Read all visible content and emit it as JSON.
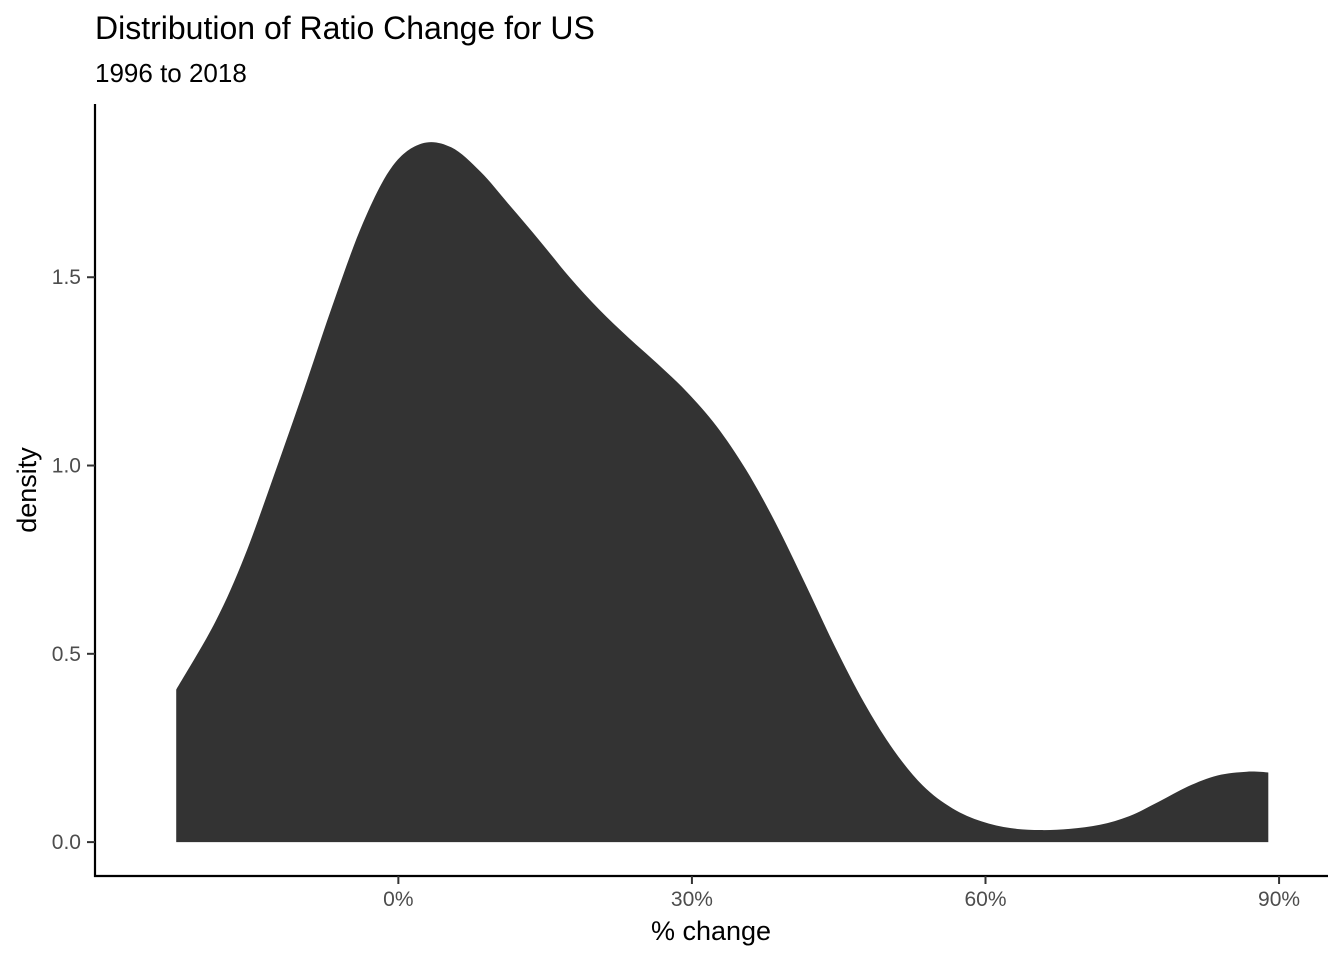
{
  "chart_data": {
    "type": "area",
    "title": "Distribution of Ratio Change for US",
    "subtitle": "1996 to 2018",
    "xlabel": "% change",
    "ylabel": "density",
    "x_unit": "percent",
    "xlim": [
      -31,
      95
    ],
    "ylim": [
      -0.09,
      1.96
    ],
    "x_ticks": [
      0,
      30,
      60,
      90
    ],
    "x_tick_labels": [
      "0%",
      "30%",
      "60%",
      "90%"
    ],
    "y_ticks": [
      0.0,
      0.5,
      1.0,
      1.5
    ],
    "y_tick_labels": [
      "0.0",
      "0.5",
      "1.0",
      "1.5"
    ],
    "grid": false,
    "legend": "none",
    "fill_color": "#333333",
    "series": [
      {
        "x": [
          -22.7,
          -18.7,
          -15.7,
          -12.7,
          -9.6,
          -6.6,
          -3.6,
          -0.6,
          2.4,
          5.4,
          8.4,
          11.4,
          14.5,
          17.5,
          20.5,
          23.5,
          26.5,
          29.5,
          32.5,
          35.5,
          38.5,
          41.6,
          44.6,
          47.6,
          50.6,
          53.6,
          56.6,
          59.6,
          62.6,
          65.6,
          68.6,
          71.7,
          74.7,
          77.7,
          80.7,
          83.7,
          86.7,
          88.9
        ],
        "y": [
          0.405,
          0.585,
          0.76,
          0.975,
          1.205,
          1.435,
          1.645,
          1.795,
          1.855,
          1.845,
          1.78,
          1.69,
          1.595,
          1.5,
          1.415,
          1.34,
          1.27,
          1.195,
          1.105,
          0.99,
          0.85,
          0.685,
          0.52,
          0.37,
          0.245,
          0.15,
          0.09,
          0.055,
          0.037,
          0.032,
          0.035,
          0.046,
          0.069,
          0.107,
          0.148,
          0.177,
          0.187,
          0.185
        ]
      }
    ]
  }
}
